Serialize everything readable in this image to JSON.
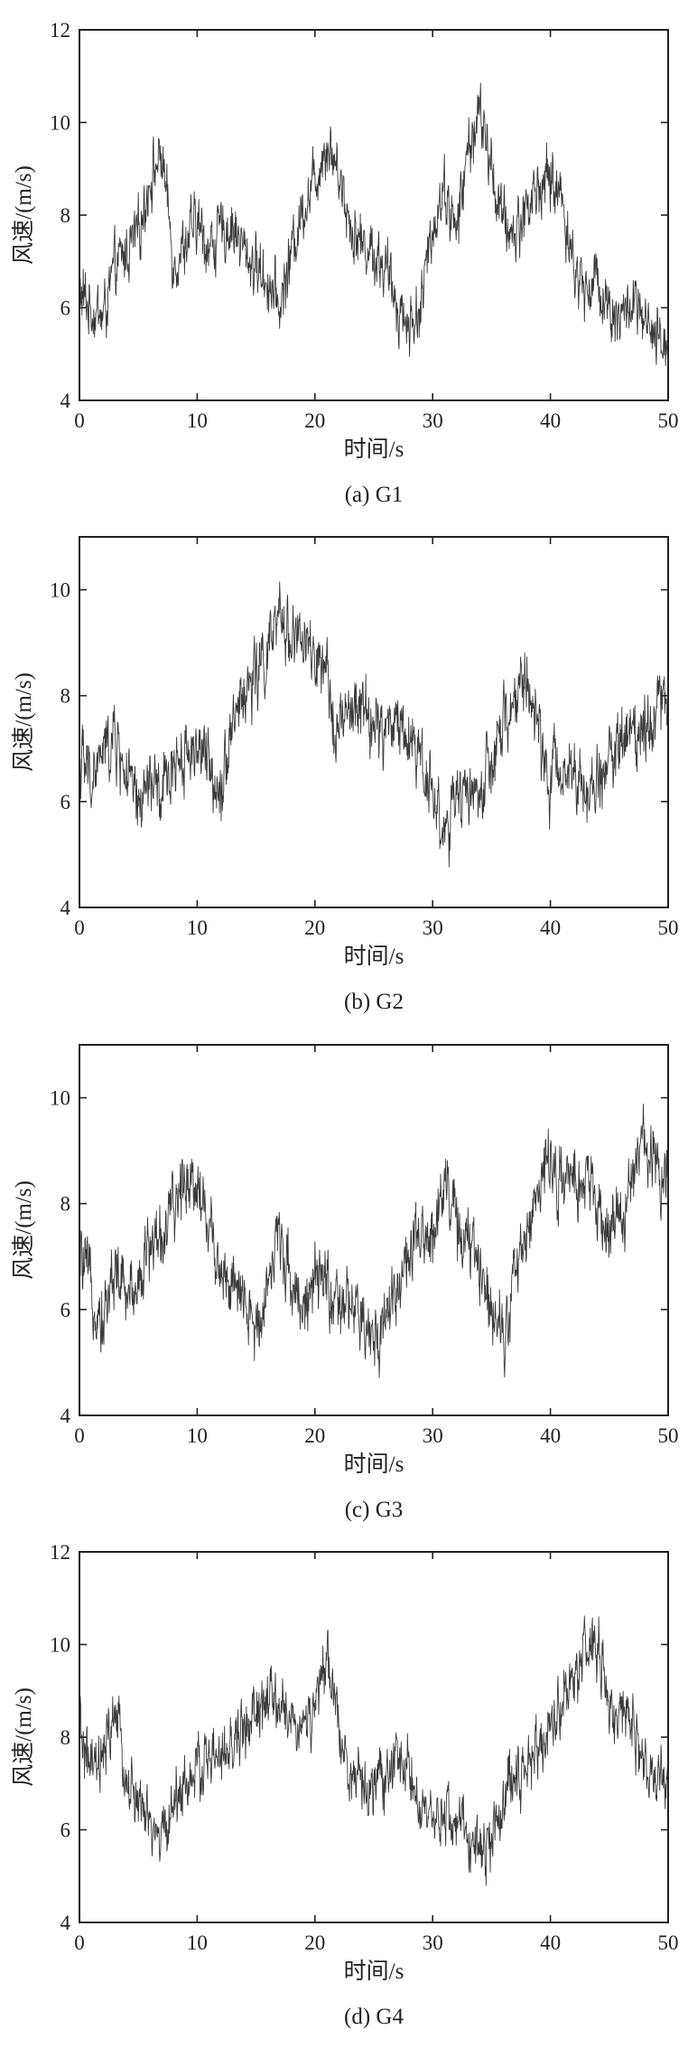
{
  "chart_data": [
    {
      "type": "line",
      "caption": "(a) G1",
      "xlabel": "时间/s",
      "ylabel": "风速/(m/s)",
      "xlim": [
        0,
        50
      ],
      "ylim": [
        4,
        12
      ],
      "xticks": [
        0,
        10,
        20,
        30,
        40,
        50
      ],
      "yticks": [
        4,
        6,
        8,
        10,
        12
      ],
      "grid": false,
      "series": [
        {
          "x": [
            0,
            1,
            2,
            3,
            4,
            5,
            6,
            7,
            8,
            9,
            10,
            11,
            12,
            13,
            14,
            15,
            16,
            17,
            18,
            19,
            20,
            21,
            22,
            23,
            24,
            25,
            26,
            27,
            28,
            29,
            30,
            31,
            32,
            33,
            34,
            35,
            36,
            37,
            38,
            39,
            40,
            41,
            42,
            43,
            44,
            45,
            46,
            47,
            48,
            49,
            50
          ],
          "y": [
            6.3,
            6.0,
            5.8,
            6.8,
            7.2,
            7.6,
            8.8,
            9.3,
            7.0,
            7.4,
            7.8,
            7.3,
            7.6,
            7.8,
            7.2,
            6.9,
            6.6,
            6.0,
            7.2,
            8.2,
            8.8,
            9.6,
            9.0,
            7.8,
            7.4,
            7.2,
            6.8,
            6.1,
            5.6,
            6.0,
            7.8,
            8.6,
            7.6,
            9.4,
            10.2,
            9.0,
            7.8,
            7.6,
            8.2,
            8.6,
            8.8,
            8.4,
            6.8,
            6.4,
            6.6,
            6.0,
            5.8,
            6.1,
            5.6,
            5.2,
            5.3
          ]
        }
      ]
    },
    {
      "type": "line",
      "caption": "(b) G2",
      "xlabel": "时间/s",
      "ylabel": "风速/(m/s)",
      "xlim": [
        0,
        50
      ],
      "ylim": [
        4,
        11
      ],
      "xticks": [
        0,
        10,
        20,
        30,
        40,
        50
      ],
      "yticks": [
        4,
        6,
        8,
        10
      ],
      "grid": false,
      "series": [
        {
          "x": [
            0,
            1,
            2,
            3,
            4,
            5,
            6,
            7,
            8,
            9,
            10,
            11,
            12,
            13,
            14,
            15,
            16,
            17,
            18,
            19,
            20,
            21,
            22,
            23,
            24,
            25,
            26,
            27,
            28,
            29,
            30,
            31,
            32,
            33,
            34,
            35,
            36,
            37,
            38,
            39,
            40,
            41,
            42,
            43,
            44,
            45,
            46,
            47,
            48,
            49,
            50
          ],
          "y": [
            6.8,
            6.4,
            6.9,
            7.2,
            6.5,
            5.8,
            6.4,
            6.0,
            6.8,
            6.9,
            7.1,
            6.6,
            6.3,
            7.6,
            8.0,
            8.4,
            8.8,
            9.4,
            9.2,
            9.0,
            8.6,
            8.2,
            7.4,
            7.6,
            7.8,
            7.4,
            7.3,
            7.6,
            7.2,
            6.9,
            6.2,
            5.4,
            5.9,
            6.3,
            6.1,
            6.6,
            7.4,
            7.9,
            8.4,
            7.2,
            6.4,
            6.6,
            6.9,
            5.9,
            6.4,
            6.8,
            7.2,
            7.3,
            7.5,
            7.8,
            8.0
          ]
        }
      ]
    },
    {
      "type": "line",
      "caption": "(c) G3",
      "xlabel": "时间/s",
      "ylabel": "风速/(m/s)",
      "xlim": [
        0,
        50
      ],
      "ylim": [
        4,
        11
      ],
      "xticks": [
        0,
        10,
        20,
        30,
        40,
        50
      ],
      "yticks": [
        4,
        6,
        8,
        10
      ],
      "grid": false,
      "series": [
        {
          "x": [
            0,
            1,
            2,
            3,
            4,
            5,
            6,
            7,
            8,
            9,
            10,
            11,
            12,
            13,
            14,
            15,
            16,
            17,
            18,
            19,
            20,
            21,
            22,
            23,
            24,
            25,
            26,
            27,
            28,
            29,
            30,
            31,
            32,
            33,
            34,
            35,
            36,
            37,
            38,
            39,
            40,
            41,
            42,
            43,
            44,
            45,
            46,
            47,
            48,
            49,
            50
          ],
          "y": [
            7.0,
            6.4,
            5.8,
            6.8,
            6.2,
            6.6,
            7.2,
            7.4,
            7.8,
            8.6,
            8.4,
            7.6,
            6.8,
            6.4,
            6.0,
            5.6,
            6.6,
            7.4,
            6.6,
            6.1,
            6.4,
            6.6,
            5.8,
            6.2,
            5.6,
            5.4,
            5.9,
            6.5,
            7.0,
            7.2,
            7.4,
            8.6,
            7.6,
            7.2,
            6.8,
            6.2,
            5.6,
            6.6,
            7.4,
            8.4,
            8.8,
            8.4,
            8.2,
            8.6,
            7.8,
            7.4,
            7.8,
            8.4,
            9.2,
            8.8,
            8.6
          ]
        }
      ]
    },
    {
      "type": "line",
      "caption": "(d) G4",
      "xlabel": "时间/s",
      "ylabel": "风速/(m/s)",
      "xlim": [
        0,
        50
      ],
      "ylim": [
        4,
        12
      ],
      "xticks": [
        0,
        10,
        20,
        30,
        40,
        50
      ],
      "yticks": [
        4,
        6,
        8,
        10,
        12
      ],
      "grid": false,
      "series": [
        {
          "x": [
            0,
            1,
            2,
            3,
            4,
            5,
            6,
            7,
            8,
            9,
            10,
            11,
            12,
            13,
            14,
            15,
            16,
            17,
            18,
            19,
            20,
            21,
            22,
            23,
            24,
            25,
            26,
            27,
            28,
            29,
            30,
            31,
            32,
            33,
            34,
            35,
            36,
            37,
            38,
            39,
            40,
            41,
            42,
            43,
            44,
            45,
            46,
            47,
            48,
            49,
            50
          ],
          "y": [
            8.2,
            7.2,
            7.4,
            8.6,
            7.0,
            6.6,
            6.0,
            5.8,
            6.6,
            7.0,
            7.2,
            7.6,
            7.4,
            7.8,
            8.2,
            8.4,
            8.8,
            8.6,
            8.4,
            8.2,
            8.6,
            9.6,
            8.4,
            7.2,
            6.8,
            7.0,
            7.2,
            7.4,
            7.6,
            6.2,
            6.0,
            6.4,
            6.2,
            5.8,
            5.6,
            5.8,
            6.6,
            7.2,
            7.4,
            7.8,
            8.2,
            8.8,
            9.4,
            9.8,
            10.0,
            8.6,
            8.2,
            8.4,
            7.4,
            6.8,
            7.2
          ]
        }
      ]
    }
  ]
}
